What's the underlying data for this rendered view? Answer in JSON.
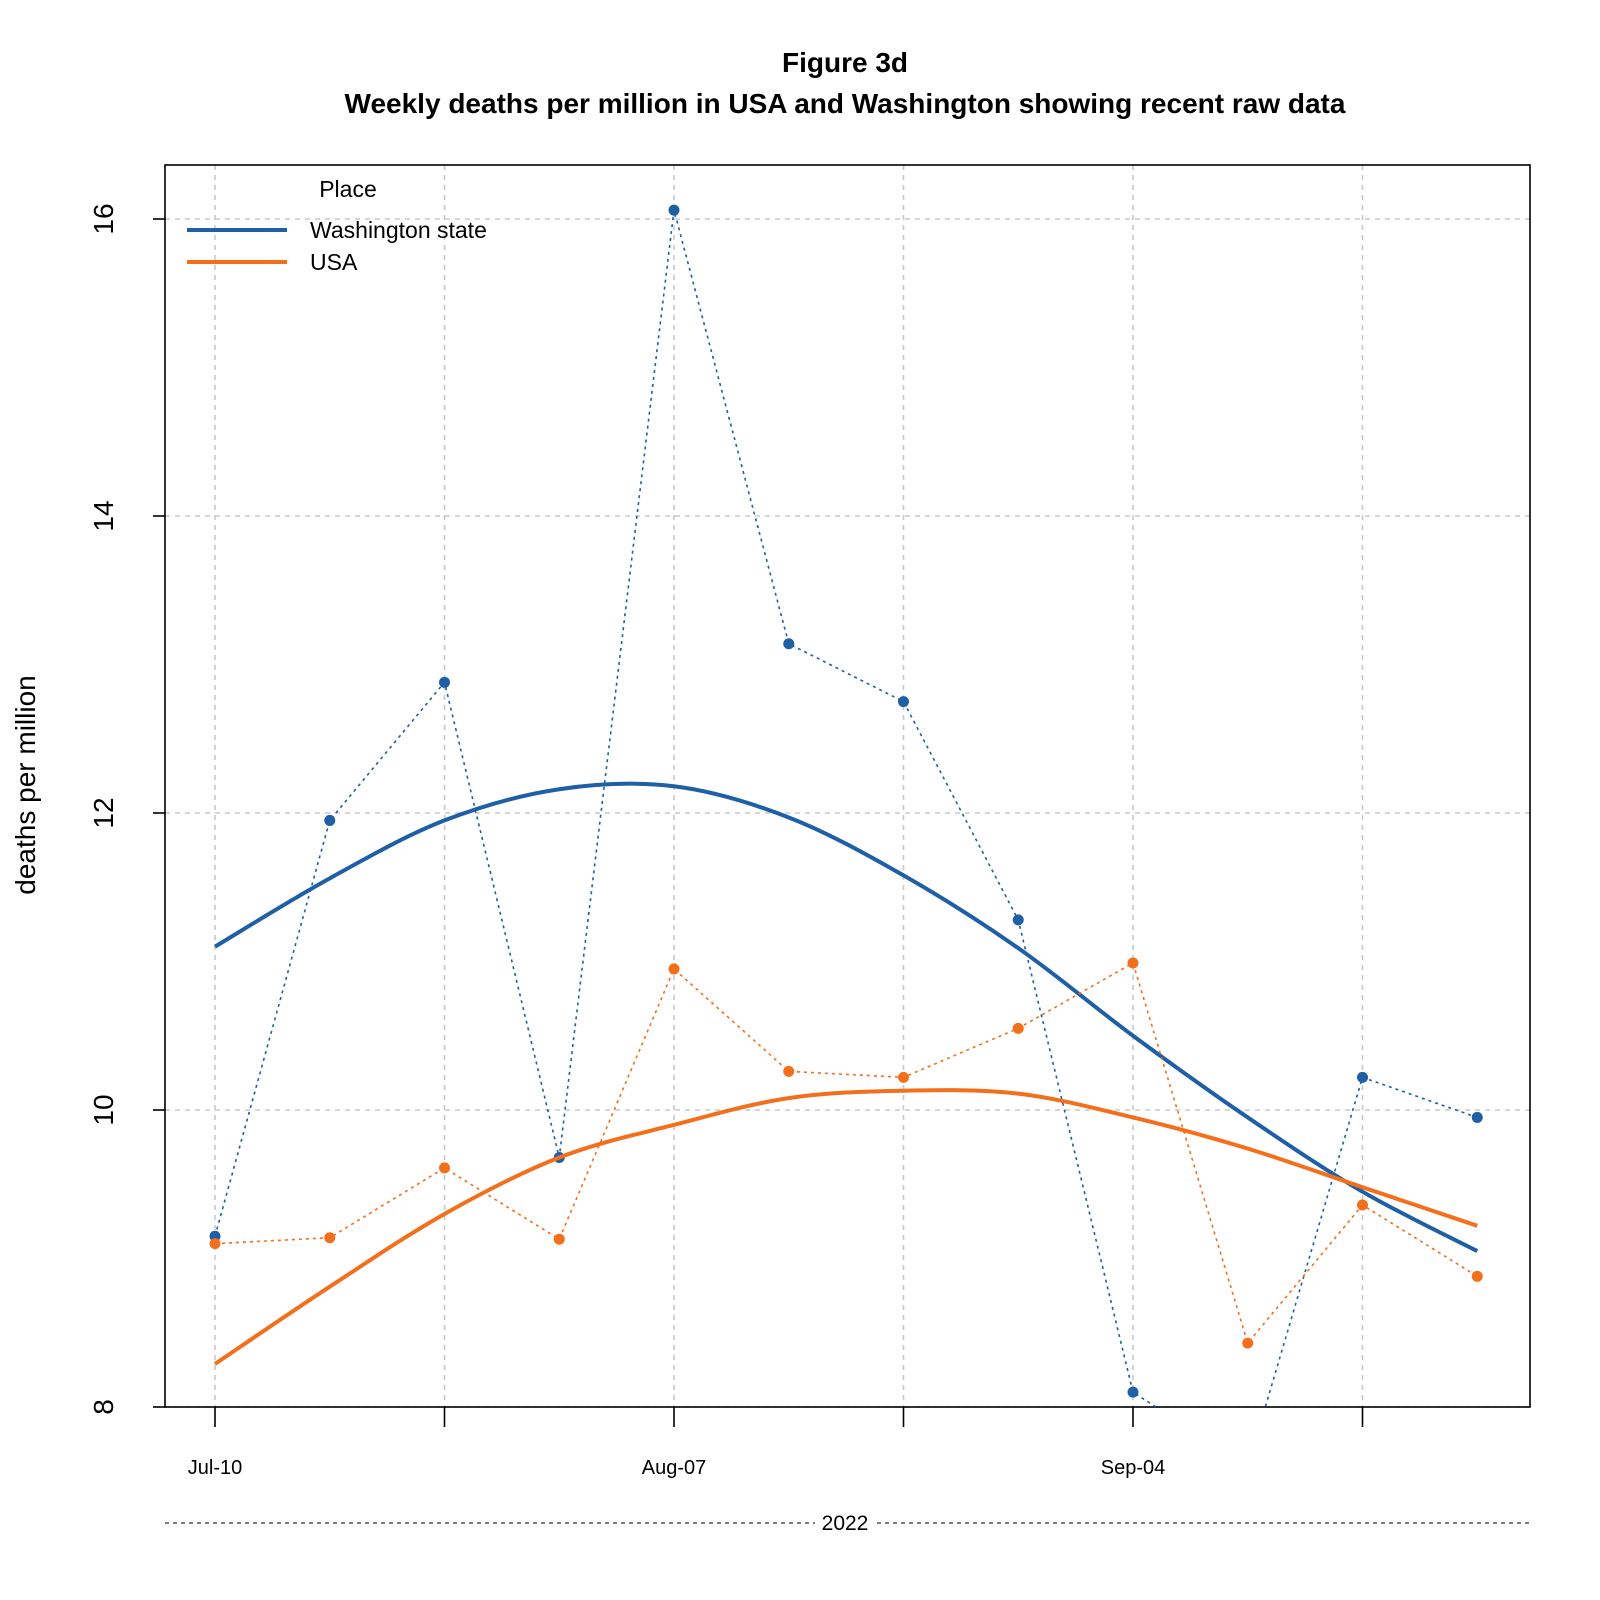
{
  "chart_data": {
    "type": "line",
    "title": "Figure 3d",
    "subtitle": "Weekly deaths per million in USA and Washington showing recent raw data",
    "xlabel": "2022",
    "ylabel": "deaths per million",
    "ylim": [
      8,
      16.4
    ],
    "yticks": [
      "8",
      "10",
      "12",
      "14",
      "16"
    ],
    "x": [
      "2022-07-10",
      "2022-07-17",
      "2022-07-24",
      "2022-07-31",
      "2022-08-07",
      "2022-08-14",
      "2022-08-21",
      "2022-08-28",
      "2022-09-04",
      "2022-09-11",
      "2022-09-18",
      "2022-09-25"
    ],
    "xtick_labels": [
      "Jul-10",
      "",
      "",
      "",
      "Aug-07",
      "",
      "",
      "",
      "Sep-04",
      "",
      "",
      ""
    ],
    "grid": true,
    "legend_title": "Place",
    "legend_position": "top-left",
    "series": [
      {
        "name": "Washington state",
        "color": "#1f5fa6",
        "style": "dotted-points",
        "values": [
          9.15,
          11.95,
          12.88,
          9.68,
          16.06,
          13.14,
          12.75,
          11.28,
          8.1,
          7.6,
          10.22,
          9.95
        ]
      },
      {
        "name": "Washington state trend",
        "color": "#1f5fa6",
        "style": "smooth",
        "values": [
          11.1,
          11.56,
          11.95,
          12.16,
          12.18,
          11.97,
          11.58,
          11.09,
          10.5,
          9.95,
          9.45,
          9.05
        ]
      },
      {
        "name": "USA",
        "color": "#f36f1c",
        "style": "dotted-points",
        "values": [
          9.1,
          9.14,
          9.61,
          9.13,
          10.95,
          10.26,
          10.22,
          10.55,
          10.99,
          8.43,
          9.36,
          8.88
        ]
      },
      {
        "name": "USA trend",
        "color": "#f36f1c",
        "style": "smooth",
        "values": [
          8.29,
          8.81,
          9.3,
          9.68,
          9.9,
          10.08,
          10.13,
          10.11,
          9.95,
          9.74,
          9.48,
          9.22
        ]
      }
    ]
  }
}
